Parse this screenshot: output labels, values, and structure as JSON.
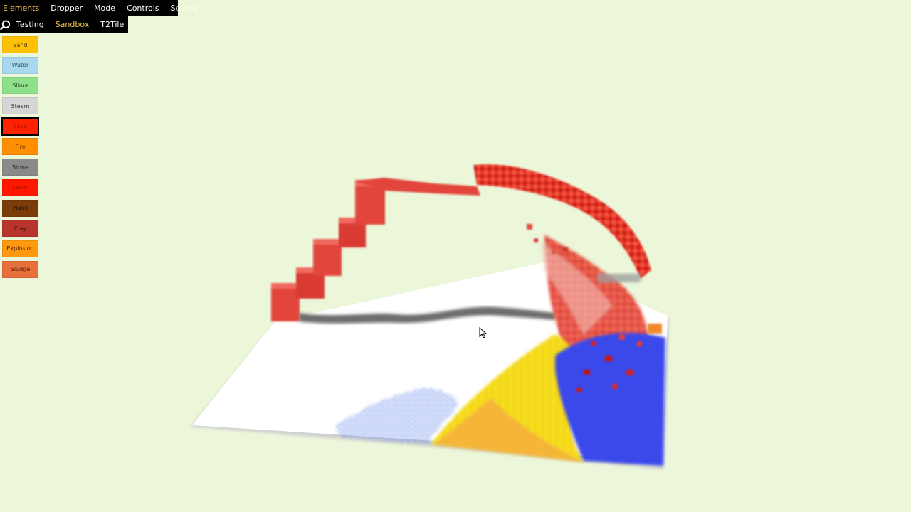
{
  "nav": {
    "items": [
      {
        "label": "Elements",
        "active": true
      },
      {
        "label": "Dropper",
        "active": false
      },
      {
        "label": "Mode",
        "active": false
      },
      {
        "label": "Controls",
        "active": false
      },
      {
        "label": "Source",
        "active": false
      }
    ]
  },
  "subnav": {
    "search_icon": "search-icon",
    "tabs": [
      {
        "label": "Testing",
        "active": false
      },
      {
        "label": "Sandbox",
        "active": true
      },
      {
        "label": "T2Tile",
        "active": false
      }
    ]
  },
  "elements": [
    {
      "label": "Sand",
      "color": "#ffc107",
      "text": "#4a3500"
    },
    {
      "label": "Water",
      "color": "#a9d8ee",
      "text": "#2d4a5a"
    },
    {
      "label": "Slime",
      "color": "#8fe08a",
      "text": "#234a21"
    },
    {
      "label": "Steam",
      "color": "#d5d5d5",
      "text": "#3a3a3a"
    },
    {
      "label": "Lava",
      "color": "#ff2200",
      "text": "#b01000",
      "selected": true
    },
    {
      "label": "Fire",
      "color": "#ff8f00",
      "text": "#7a3500"
    },
    {
      "label": "Stone",
      "color": "#8a8a8a",
      "text": "#222222"
    },
    {
      "label": "Laser",
      "color": "#ff1800",
      "text": "#b01000"
    },
    {
      "label": "Plank",
      "color": "#7a3d0a",
      "text": "#2a1200"
    },
    {
      "label": "Clay",
      "color": "#b8352e",
      "text": "#4a0f0a"
    },
    {
      "label": "Explosion",
      "color": "#ff9a10",
      "text": "#5a2000"
    },
    {
      "label": "Sludge",
      "color": "#e8703a",
      "text": "#5a2008"
    }
  ],
  "scene": {
    "background": "#ecf7da",
    "floor": "#ffffff",
    "stone": "#9a9a9a",
    "lava": "#e4443a",
    "sand": "#f7b733",
    "sand_top": "#f2e02a",
    "water": "#2a33e0",
    "water_light": "#7fa2ee"
  }
}
